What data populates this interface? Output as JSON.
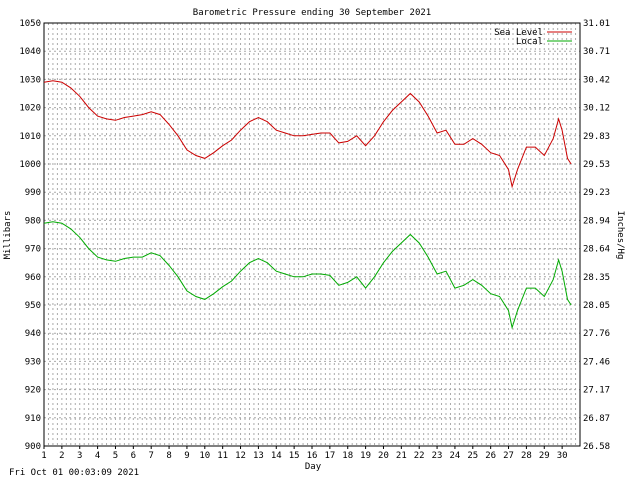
{
  "title": "Barometric Pressure ending 30 September 2021",
  "timestamp": "Fri Oct 01 00:03:09 2021",
  "chart_data": {
    "type": "line",
    "title": "Barometric Pressure ending 30 September 2021",
    "xlabel": "Day",
    "ylabel": "Millibars",
    "ylabel_right": "Inches/Hg",
    "xlim": [
      1,
      31
    ],
    "ylim": [
      900,
      1050
    ],
    "grid": true,
    "legend_position": "top-right",
    "x_ticks": [
      "1",
      "2",
      "3",
      "4",
      "5",
      "6",
      "7",
      "8",
      "9",
      "10",
      "11",
      "12",
      "13",
      "14",
      "15",
      "16",
      "17",
      "18",
      "19",
      "20",
      "21",
      "22",
      "23",
      "24",
      "25",
      "26",
      "27",
      "28",
      "29",
      "30"
    ],
    "y_ticks": [
      "900",
      "910",
      "920",
      "930",
      "940",
      "950",
      "960",
      "970",
      "980",
      "990",
      "1000",
      "1010",
      "1020",
      "1030",
      "1040",
      "1050"
    ],
    "y_ticks_right": [
      "26.58",
      "26.87",
      "27.17",
      "27.46",
      "27.76",
      "28.05",
      "28.35",
      "28.64",
      "28.94",
      "29.23",
      "29.53",
      "29.83",
      "30.12",
      "30.42",
      "30.71",
      "31.01"
    ],
    "colors": {
      "Sea Level": "#cc0000",
      "Local": "#00aa00",
      "grid": "#aaaaaa"
    },
    "series": [
      {
        "name": "Sea Level",
        "x": [
          1,
          1.5,
          2,
          2.5,
          3,
          3.5,
          4,
          4.5,
          5,
          5.5,
          6,
          6.5,
          7,
          7.5,
          8,
          8.5,
          9,
          9.5,
          10,
          10.5,
          11,
          11.5,
          12,
          12.5,
          13,
          13.5,
          14,
          14.5,
          15,
          15.5,
          16,
          16.5,
          17,
          17.5,
          18,
          18.5,
          19,
          19.5,
          20,
          20.5,
          21,
          21.5,
          22,
          22.5,
          23,
          23.5,
          24,
          24.5,
          25,
          25.5,
          26,
          26.5,
          27,
          27.2,
          27.5,
          28,
          28.5,
          29,
          29.5,
          29.8,
          30,
          30.3,
          30.5
        ],
        "y": [
          1029,
          1029.5,
          1029,
          1027,
          1024,
          1020,
          1017,
          1016,
          1015.5,
          1016.5,
          1017,
          1017.5,
          1018.5,
          1017.5,
          1014,
          1010,
          1005,
          1003,
          1002,
          1004,
          1006.5,
          1008.5,
          1012,
          1015,
          1016.5,
          1015,
          1012,
          1011,
          1010,
          1010,
          1010.5,
          1011,
          1011,
          1007.5,
          1008,
          1010,
          1006.5,
          1010,
          1015,
          1019,
          1022,
          1025,
          1022,
          1017,
          1011,
          1012,
          1007,
          1007,
          1009,
          1007,
          1004,
          1003,
          998,
          992,
          998,
          1006,
          1006,
          1003,
          1009,
          1016,
          1012,
          1002,
          1000
        ]
      },
      {
        "name": "Local",
        "x": [
          1,
          1.5,
          2,
          2.5,
          3,
          3.5,
          4,
          4.5,
          5,
          5.5,
          6,
          6.5,
          7,
          7.5,
          8,
          8.5,
          9,
          9.5,
          10,
          10.5,
          11,
          11.5,
          12,
          12.5,
          13,
          13.5,
          14,
          14.5,
          15,
          15.5,
          16,
          16.5,
          17,
          17.5,
          18,
          18.5,
          19,
          19.5,
          20,
          20.5,
          21,
          21.5,
          22,
          22.5,
          23,
          23.5,
          24,
          24.5,
          25,
          25.5,
          26,
          26.5,
          27,
          27.2,
          27.5,
          28,
          28.5,
          29,
          29.5,
          29.8,
          30,
          30.3,
          30.5
        ],
        "y": [
          979,
          979.5,
          979,
          977,
          974,
          970,
          967,
          966,
          965.5,
          966.5,
          967,
          967,
          968.5,
          967.5,
          964,
          960,
          955,
          953,
          952,
          954,
          956.5,
          958.5,
          962,
          965,
          966.5,
          965,
          962,
          961,
          960,
          960,
          961,
          961,
          960.5,
          957,
          958,
          960,
          956,
          960,
          965,
          969,
          972,
          975,
          972,
          967,
          961,
          962,
          956,
          957,
          959,
          957,
          954,
          953,
          948,
          942,
          948,
          956,
          956,
          953,
          959,
          966,
          962,
          952,
          950
        ]
      }
    ]
  }
}
